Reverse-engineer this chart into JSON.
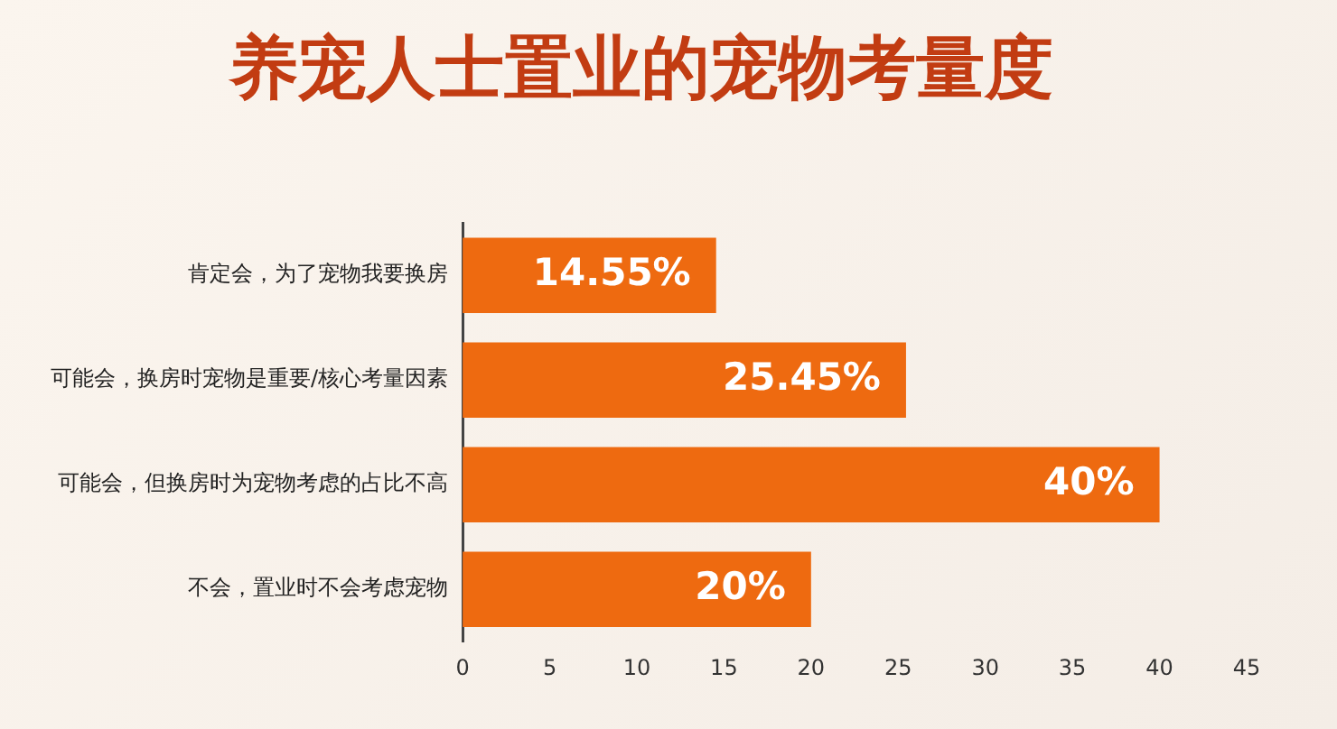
{
  "chart_data": {
    "type": "bar",
    "orientation": "horizontal",
    "title": "养宠人士置业的宠物考量度",
    "categories": [
      "肯定会，为了宠物我要换房",
      "可能会，换房时宠物是重要/核心考量因素",
      "可能会，但换房时为宠物考虑的占比不高",
      "不会，置业时不会考虑宠物"
    ],
    "values": [
      14.55,
      25.45,
      40,
      20
    ],
    "value_labels": [
      "14.55%",
      "25.45%",
      "40%",
      "20%"
    ],
    "color": "#ee6a10",
    "xlim": [
      0,
      45
    ],
    "xticks": [
      0,
      5,
      10,
      15,
      20,
      25,
      30,
      35,
      40,
      45
    ],
    "grid": false,
    "legend": false
  }
}
